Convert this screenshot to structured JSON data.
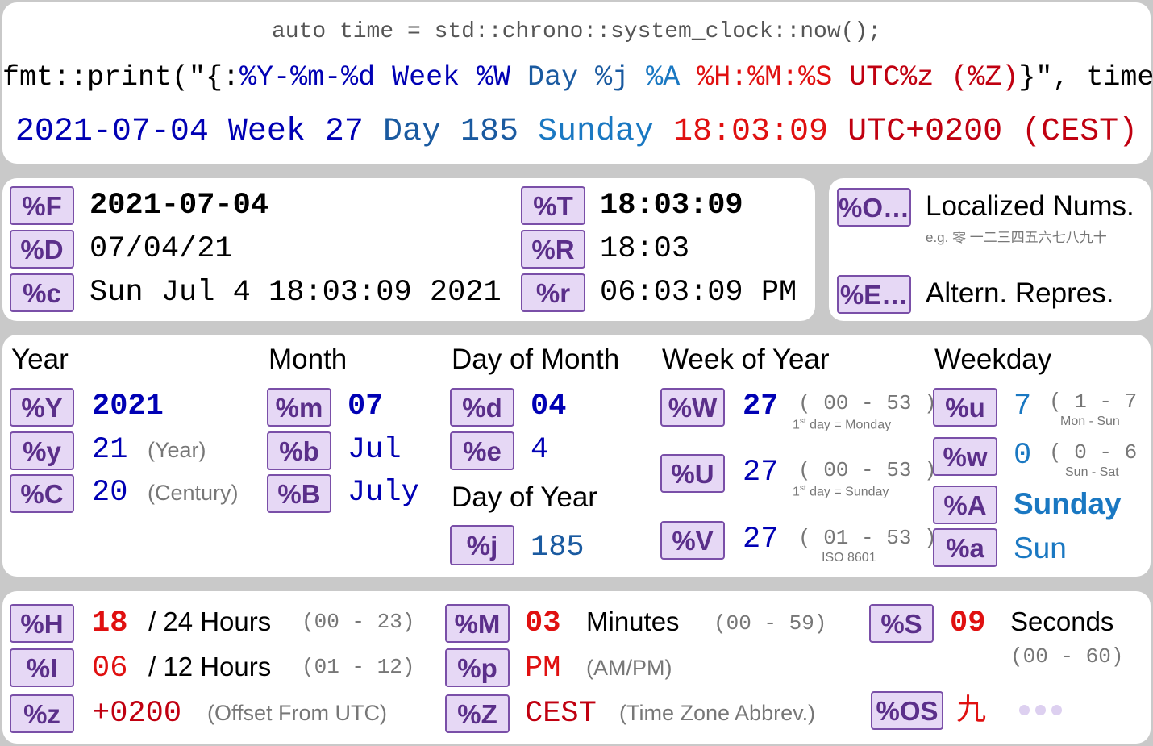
{
  "header": {
    "code_line": "auto time = std::chrono::system_clock::now();",
    "fmt_prefix": "fmt::print(\"{:",
    "fmt_date": "%Y-%m-%d",
    "fmt_week": "Week %W",
    "fmt_day": "Day %j",
    "fmt_weekday": "%A",
    "fmt_time": "%H:%M:%S",
    "fmt_utc": "UTC%z",
    "fmt_zone": "(%Z)",
    "fmt_suffix": "}\", time)",
    "out_date": "2021-07-04",
    "out_week": "Week 27",
    "out_day": "Day 185",
    "out_weekday": "Sunday",
    "out_time": "18:03:09",
    "out_utc": "UTC+0200",
    "out_zone": "(CEST)"
  },
  "composite": {
    "F": {
      "spec": "%F",
      "value": "2021-07-04"
    },
    "D": {
      "spec": "%D",
      "value": "07/04/21"
    },
    "c": {
      "spec": "%c",
      "value": "Sun Jul 4 18:03:09 2021"
    },
    "T": {
      "spec": "%T",
      "value": "18:03:09"
    },
    "R": {
      "spec": "%R",
      "value": "18:03"
    },
    "r": {
      "spec": "%r",
      "value": "06:03:09 PM"
    }
  },
  "modifiers": {
    "O": {
      "spec": "%O…",
      "label": "Localized Nums.",
      "example": "e.g. 零 一二三四五六七八九十"
    },
    "E": {
      "spec": "%E…",
      "label": "Altern. Repres."
    }
  },
  "date": {
    "year": {
      "title": "Year",
      "Y": {
        "spec": "%Y",
        "value": "2021"
      },
      "y": {
        "spec": "%y",
        "value": "21",
        "note": "(Year)"
      },
      "C": {
        "spec": "%C",
        "value": "20",
        "note": "(Century)"
      }
    },
    "month": {
      "title": "Month",
      "m": {
        "spec": "%m",
        "value": "07"
      },
      "b": {
        "spec": "%b",
        "value": "Jul"
      },
      "B": {
        "spec": "%B",
        "value": "July"
      }
    },
    "day_of_month": {
      "title": "Day of Month",
      "d": {
        "spec": "%d",
        "value": "04"
      },
      "e": {
        "spec": "%e",
        "value": "4"
      }
    },
    "day_of_year": {
      "title": "Day of Year",
      "j": {
        "spec": "%j",
        "value": "185"
      }
    },
    "week": {
      "title": "Week of Year",
      "W": {
        "spec": "%W",
        "value": "27",
        "range": "( 00 - 53 )",
        "note_pre": "1",
        "note_sup": "st",
        "note_post": " day = Monday"
      },
      "U": {
        "spec": "%U",
        "value": "27",
        "range": "( 00 - 53 )",
        "note_pre": "1",
        "note_sup": "st",
        "note_post": " day = Sunday"
      },
      "V": {
        "spec": "%V",
        "value": "27",
        "range": "( 01 - 53 )",
        "note": "ISO 8601"
      }
    },
    "weekday": {
      "title": "Weekday",
      "u": {
        "spec": "%u",
        "value": "7",
        "range": "( 1 - 7 )",
        "note": "Mon - Sun"
      },
      "w": {
        "spec": "%w",
        "value": "0",
        "range": "( 0 - 6 )",
        "note": "Sun - Sat"
      },
      "A": {
        "spec": "%A",
        "value": "Sunday"
      },
      "a": {
        "spec": "%a",
        "value": "Sun"
      }
    }
  },
  "time": {
    "H": {
      "spec": "%H",
      "value": "18",
      "label": "/ 24 Hours",
      "range": "(00 - 23)"
    },
    "I": {
      "spec": "%I",
      "value": "06",
      "label": "/ 12 Hours",
      "range": "(01 - 12)"
    },
    "z": {
      "spec": "%z",
      "value": "+0200",
      "note": "(Offset From UTC)"
    },
    "M": {
      "spec": "%M",
      "value": "03",
      "label": "Minutes",
      "range": "(00 - 59)"
    },
    "p": {
      "spec": "%p",
      "value": "PM",
      "note": "(AM/PM)"
    },
    "Z": {
      "spec": "%Z",
      "value": "CEST",
      "note": "(Time Zone Abbrev.)"
    },
    "S": {
      "spec": "%S",
      "value": "09",
      "label": "Seconds",
      "range": "(00 - 60)"
    },
    "OS": {
      "spec": "%OS",
      "value": "九"
    }
  },
  "colors": {
    "badge_bg": "#e6d8f5",
    "badge_border": "#7a4fa8",
    "badge_text": "#5b2f8a",
    "navy": "#0000b4",
    "blue": "#1a5aa0",
    "sky": "#1a78c2",
    "red": "#e01010",
    "dark_red": "#c00010"
  }
}
